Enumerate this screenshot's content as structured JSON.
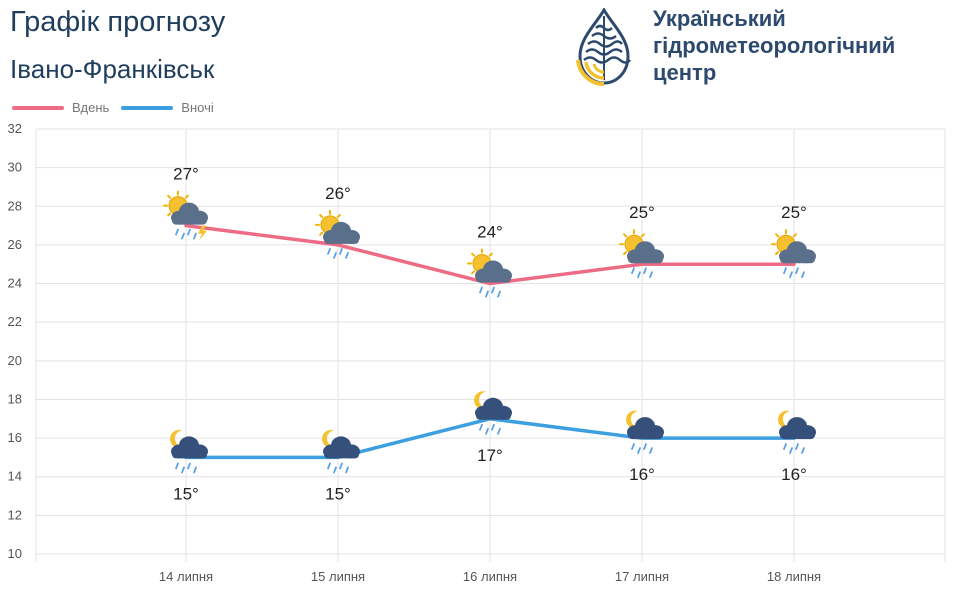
{
  "header": {
    "title": "Графік прогнозу",
    "city": "Івано-Франківськ",
    "org_line1": "Український",
    "org_line2": "гідрометеорологічний",
    "org_line3": "центр"
  },
  "legend": {
    "day_label": "Вдень",
    "night_label": "Вночі"
  },
  "chart_data": {
    "type": "line",
    "categories": [
      "14 липня",
      "15 липня",
      "16 липня",
      "17 липня",
      "18 липня"
    ],
    "series": [
      {
        "name": "Вдень",
        "color": "#ee6b86",
        "values": [
          27,
          26,
          24,
          25,
          25
        ],
        "labels": [
          "27°",
          "26°",
          "24°",
          "25°",
          "25°"
        ],
        "icons": [
          "sun-cloud-thunderstorm-icon",
          "sun-cloud-rain-icon",
          "sun-cloud-rain-icon",
          "sun-cloud-rain-icon",
          "sun-cloud-rain-icon"
        ]
      },
      {
        "name": "Вночі",
        "color": "#3b9fe0",
        "values": [
          15,
          15,
          17,
          16,
          16
        ],
        "labels": [
          "15°",
          "15°",
          "17°",
          "16°",
          "16°"
        ],
        "icons": [
          "moon-cloud-rain-icon",
          "moon-cloud-rain-icon",
          "moon-cloud-rain-icon",
          "moon-cloud-rain-icon",
          "moon-cloud-rain-icon"
        ]
      }
    ],
    "y_ticks": [
      "10",
      "12",
      "14",
      "16",
      "18",
      "20",
      "22",
      "24",
      "26",
      "28",
      "30",
      "32"
    ],
    "ylim": [
      10,
      32
    ],
    "grid": true,
    "legend_position": "top-left"
  },
  "colors": {
    "title": "#1f3d5c",
    "logo_blue": "#2d4a6e",
    "logo_yellow": "#f2c230",
    "grid": "#e3e3e3"
  }
}
